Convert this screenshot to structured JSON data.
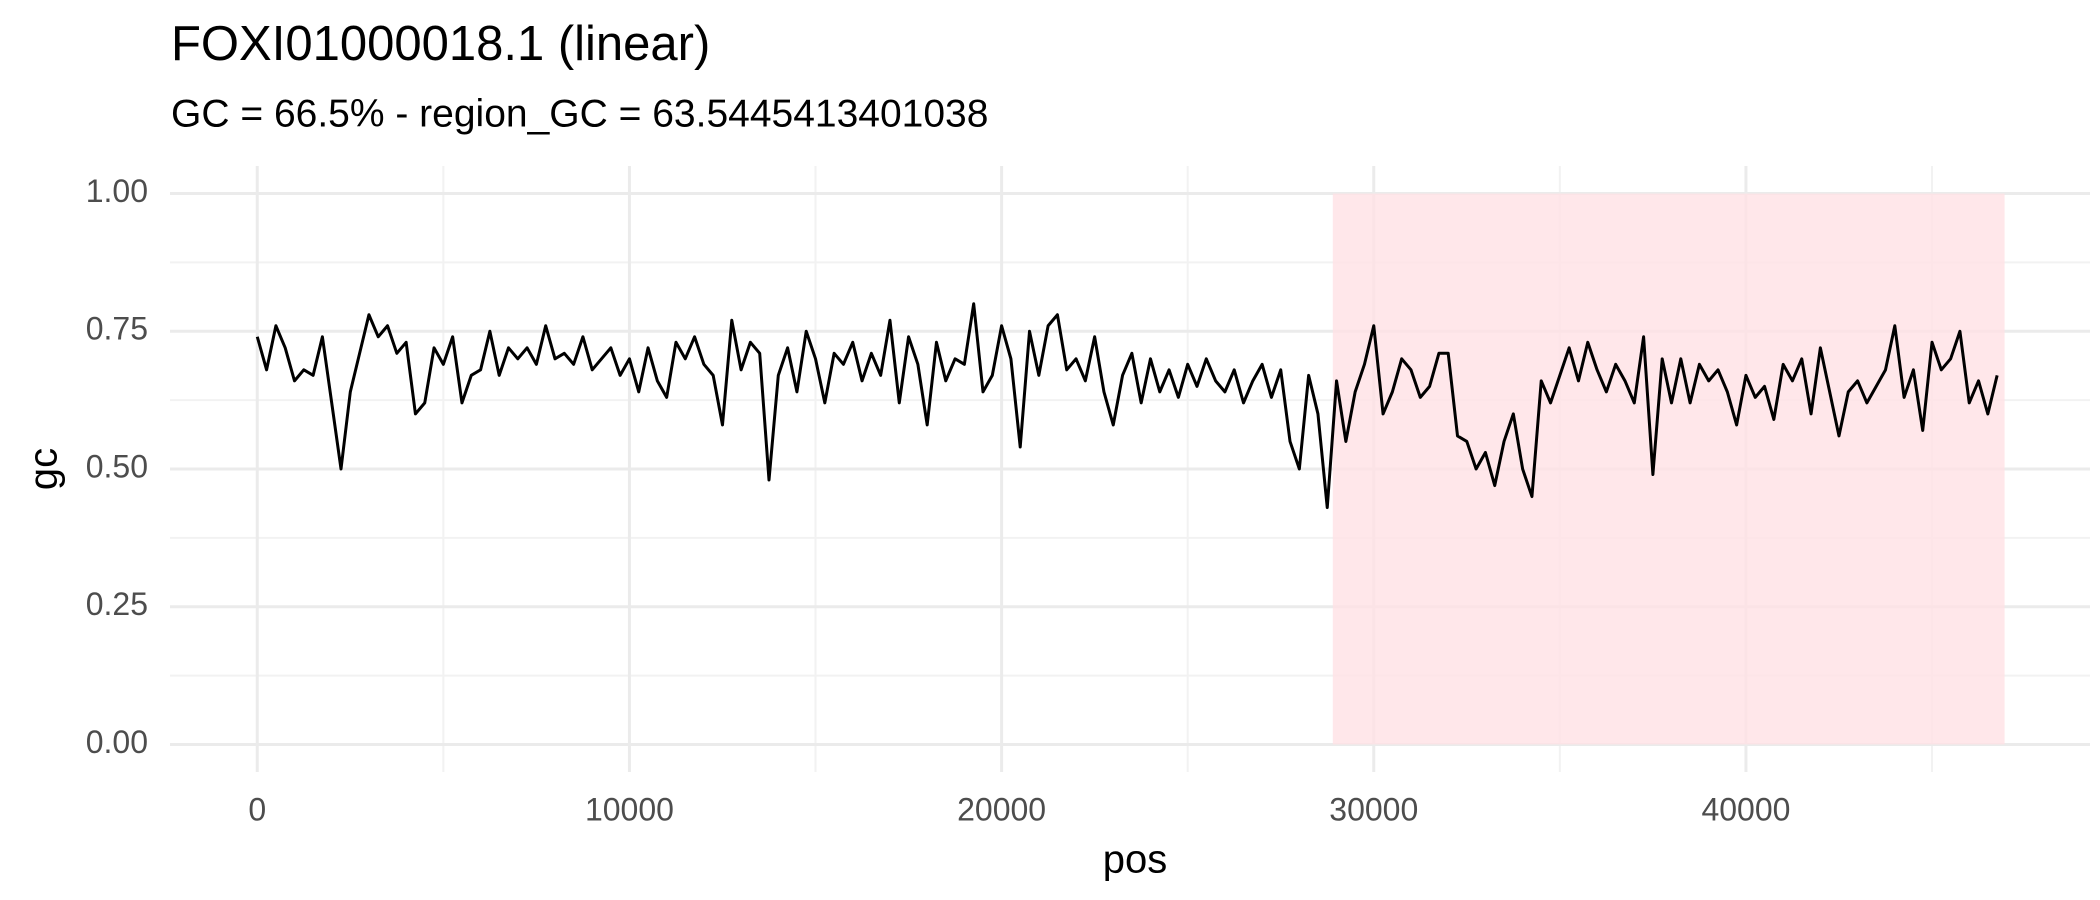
{
  "chart_data": {
    "type": "line",
    "title": "FOXI01000018.1 (linear)",
    "subtitle": "GC = 66.5% - region_GC = 63.5445413401038",
    "x_label": "pos",
    "y_label": "gc",
    "color": "#000000",
    "region": [
      28900,
      46950
    ],
    "region_color": "#ffe1e5",
    "grid": true,
    "xlim": [
      -2345,
      49245
    ],
    "xticks": [
      0,
      10000,
      20000,
      30000,
      40000
    ],
    "x_minor_ticks": [
      5000,
      15000,
      25000,
      35000,
      45000
    ],
    "ylim": [
      -0.05,
      1.05
    ],
    "yticks": [
      {
        "value": 0,
        "label": "0.00"
      },
      {
        "value": 0.25,
        "label": "0.25"
      },
      {
        "value": 0.5,
        "label": "0.50"
      },
      {
        "value": 0.75,
        "label": "0.75"
      },
      {
        "value": 1,
        "label": "1.00"
      }
    ],
    "y_minor_ticks": [
      0.125,
      0.375,
      0.625,
      0.875
    ],
    "x": [
      0,
      250,
      500,
      750,
      1000,
      1250,
      1500,
      1750,
      2000,
      2250,
      2500,
      2750,
      3000,
      3250,
      3500,
      3750,
      4000,
      4250,
      4500,
      4750,
      5000,
      5250,
      5500,
      5750,
      6000,
      6250,
      6500,
      6750,
      7000,
      7250,
      7500,
      7750,
      8000,
      8250,
      8500,
      8750,
      9000,
      9250,
      9500,
      9750,
      10000,
      10250,
      10500,
      10750,
      11000,
      11250,
      11500,
      11750,
      12000,
      12250,
      12500,
      12750,
      13000,
      13250,
      13500,
      13750,
      14000,
      14250,
      14500,
      14750,
      15000,
      15250,
      15500,
      15750,
      16000,
      16250,
      16500,
      16750,
      17000,
      17250,
      17500,
      17750,
      18000,
      18250,
      18500,
      18750,
      19000,
      19250,
      19500,
      19750,
      20000,
      20250,
      20500,
      20750,
      21000,
      21250,
      21500,
      21750,
      22000,
      22250,
      22500,
      22750,
      23000,
      23250,
      23500,
      23750,
      24000,
      24250,
      24500,
      24750,
      25000,
      25250,
      25500,
      25750,
      26000,
      26250,
      26500,
      26750,
      27000,
      27250,
      27500,
      27750,
      28000,
      28250,
      28500,
      28750,
      29000,
      29250,
      29500,
      29750,
      30000,
      30250,
      30500,
      30750,
      31000,
      31250,
      31500,
      31750,
      32000,
      32250,
      32500,
      32750,
      33000,
      33250,
      33500,
      33750,
      34000,
      34250,
      34500,
      34750,
      35000,
      35250,
      35500,
      35750,
      36000,
      36250,
      36500,
      36750,
      37000,
      37250,
      37500,
      37750,
      38000,
      38250,
      38500,
      38750,
      39000,
      39250,
      39500,
      39750,
      40000,
      40250,
      40500,
      40750,
      41000,
      41250,
      41500,
      41750,
      42000,
      42250,
      42500,
      42750,
      43000,
      43250,
      43500,
      43750,
      44000,
      44250,
      44500,
      44750,
      45000,
      45250,
      45500,
      45750,
      46000,
      46250,
      46500,
      46750
    ],
    "values": [
      0.74,
      0.68,
      0.76,
      0.72,
      0.66,
      0.68,
      0.67,
      0.74,
      0.62,
      0.5,
      0.64,
      0.71,
      0.78,
      0.74,
      0.76,
      0.71,
      0.73,
      0.6,
      0.62,
      0.72,
      0.69,
      0.74,
      0.62,
      0.67,
      0.68,
      0.75,
      0.67,
      0.72,
      0.7,
      0.72,
      0.69,
      0.76,
      0.7,
      0.71,
      0.69,
      0.74,
      0.68,
      0.7,
      0.72,
      0.67,
      0.7,
      0.64,
      0.72,
      0.66,
      0.63,
      0.73,
      0.7,
      0.74,
      0.69,
      0.67,
      0.58,
      0.77,
      0.68,
      0.73,
      0.71,
      0.48,
      0.67,
      0.72,
      0.64,
      0.75,
      0.7,
      0.62,
      0.71,
      0.69,
      0.73,
      0.66,
      0.71,
      0.67,
      0.77,
      0.62,
      0.74,
      0.69,
      0.58,
      0.73,
      0.66,
      0.7,
      0.69,
      0.8,
      0.64,
      0.67,
      0.76,
      0.7,
      0.54,
      0.75,
      0.67,
      0.76,
      0.78,
      0.68,
      0.7,
      0.66,
      0.74,
      0.64,
      0.58,
      0.67,
      0.71,
      0.62,
      0.7,
      0.64,
      0.68,
      0.63,
      0.69,
      0.65,
      0.7,
      0.66,
      0.64,
      0.68,
      0.62,
      0.66,
      0.69,
      0.63,
      0.68,
      0.55,
      0.5,
      0.67,
      0.6,
      0.43,
      0.66,
      0.55,
      0.64,
      0.69,
      0.76,
      0.6,
      0.64,
      0.7,
      0.68,
      0.63,
      0.65,
      0.71,
      0.71,
      0.56,
      0.55,
      0.5,
      0.53,
      0.47,
      0.55,
      0.6,
      0.5,
      0.45,
      0.66,
      0.62,
      0.67,
      0.72,
      0.66,
      0.73,
      0.68,
      0.64,
      0.69,
      0.66,
      0.62,
      0.74,
      0.49,
      0.7,
      0.62,
      0.7,
      0.62,
      0.69,
      0.66,
      0.68,
      0.64,
      0.58,
      0.67,
      0.63,
      0.65,
      0.59,
      0.69,
      0.66,
      0.7,
      0.6,
      0.72,
      0.64,
      0.56,
      0.64,
      0.66,
      0.62,
      0.65,
      0.68,
      0.76,
      0.63,
      0.68,
      0.57,
      0.73,
      0.68,
      0.7,
      0.75,
      0.62,
      0.66,
      0.6,
      0.67
    ]
  }
}
